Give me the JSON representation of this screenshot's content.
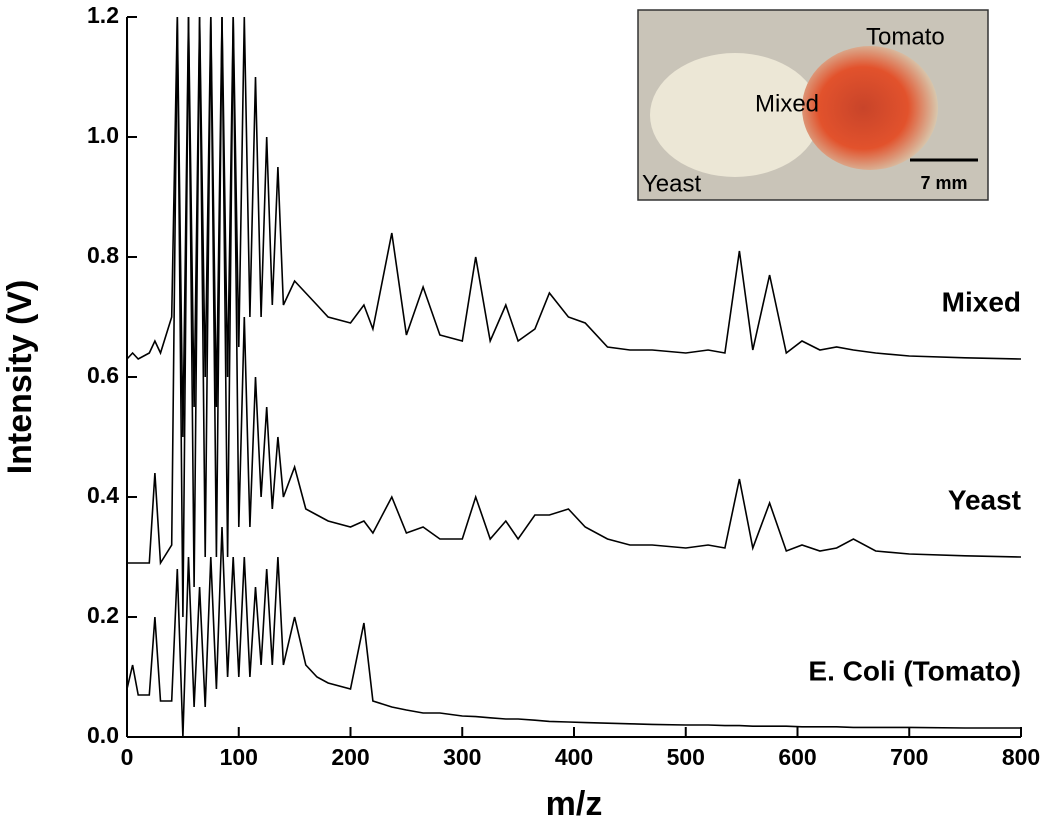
{
  "chart_data": {
    "type": "line",
    "xlabel": "m/z",
    "ylabel": "Intensity (V)",
    "xlim": [
      0,
      800
    ],
    "ylim": [
      0,
      1.2
    ],
    "xticks": [
      0,
      100,
      200,
      300,
      400,
      500,
      600,
      700,
      800
    ],
    "yticks": [
      {
        "value": 0,
        "label": "0.0"
      },
      {
        "value": 0.2,
        "label": "0.2"
      },
      {
        "value": 0.4,
        "label": "0.4"
      },
      {
        "value": 0.6,
        "label": "0.6"
      },
      {
        "value": 0.8,
        "label": "0.8"
      },
      {
        "value": 1,
        "label": "1.0"
      },
      {
        "value": 1.2,
        "label": "1.2"
      }
    ],
    "x": [
      0,
      5,
      10,
      20,
      25,
      30,
      40,
      45,
      50,
      55,
      60,
      65,
      70,
      75,
      80,
      85,
      90,
      95,
      100,
      105,
      110,
      115,
      120,
      125,
      130,
      135,
      140,
      150,
      160,
      170,
      180,
      200,
      212,
      220,
      237,
      250,
      265,
      280,
      300,
      312,
      325,
      339,
      350,
      365,
      378,
      395,
      410,
      430,
      450,
      470,
      500,
      520,
      535,
      548,
      560,
      575,
      590,
      604,
      620,
      635,
      650,
      670,
      700,
      750,
      800
    ],
    "series": [
      {
        "name": "Mixed",
        "color": "#000000",
        "values": [
          0.63,
          0.64,
          0.63,
          0.64,
          0.66,
          0.64,
          0.7,
          1.2,
          0.5,
          1.2,
          0.55,
          1.2,
          0.6,
          1.2,
          0.55,
          1.2,
          0.6,
          1.2,
          0.65,
          1.2,
          0.7,
          1.1,
          0.7,
          1.0,
          0.72,
          0.95,
          0.72,
          0.76,
          0.74,
          0.72,
          0.7,
          0.69,
          0.72,
          0.68,
          0.84,
          0.67,
          0.75,
          0.67,
          0.66,
          0.8,
          0.66,
          0.72,
          0.66,
          0.68,
          0.74,
          0.7,
          0.69,
          0.65,
          0.645,
          0.645,
          0.64,
          0.645,
          0.64,
          0.81,
          0.645,
          0.77,
          0.64,
          0.66,
          0.645,
          0.65,
          0.645,
          0.64,
          0.635,
          0.632,
          0.63
        ]
      },
      {
        "name": "Yeast",
        "color": "#000000",
        "values": [
          0.29,
          0.29,
          0.29,
          0.29,
          0.44,
          0.29,
          0.32,
          1.2,
          0.2,
          1.2,
          0.25,
          1.2,
          0.3,
          1.2,
          0.3,
          1.2,
          0.3,
          1.2,
          0.35,
          0.7,
          0.35,
          0.6,
          0.4,
          0.55,
          0.38,
          0.5,
          0.4,
          0.45,
          0.38,
          0.37,
          0.36,
          0.35,
          0.36,
          0.34,
          0.4,
          0.34,
          0.35,
          0.33,
          0.33,
          0.4,
          0.33,
          0.36,
          0.33,
          0.37,
          0.37,
          0.38,
          0.35,
          0.33,
          0.32,
          0.32,
          0.315,
          0.32,
          0.315,
          0.43,
          0.315,
          0.39,
          0.31,
          0.32,
          0.31,
          0.315,
          0.33,
          0.31,
          0.305,
          0.302,
          0.3
        ]
      },
      {
        "name": "E. Coli (Tomato)",
        "color": "#000000",
        "values": [
          0.08,
          0.12,
          0.07,
          0.07,
          0.2,
          0.06,
          0.06,
          0.28,
          0.0,
          0.3,
          0.05,
          0.25,
          0.05,
          0.3,
          0.08,
          0.35,
          0.1,
          0.3,
          0.1,
          0.3,
          0.1,
          0.25,
          0.12,
          0.28,
          0.12,
          0.3,
          0.12,
          0.2,
          0.12,
          0.1,
          0.09,
          0.08,
          0.19,
          0.06,
          0.05,
          0.045,
          0.04,
          0.04,
          0.035,
          0.034,
          0.032,
          0.03,
          0.03,
          0.028,
          0.026,
          0.025,
          0.024,
          0.023,
          0.022,
          0.021,
          0.02,
          0.02,
          0.019,
          0.019,
          0.018,
          0.018,
          0.018,
          0.017,
          0.017,
          0.017,
          0.016,
          0.016,
          0.016,
          0.015,
          0.015
        ]
      }
    ],
    "inset_labels": [
      "Tomato",
      "Mixed",
      "Yeast",
      "7 mm"
    ]
  }
}
